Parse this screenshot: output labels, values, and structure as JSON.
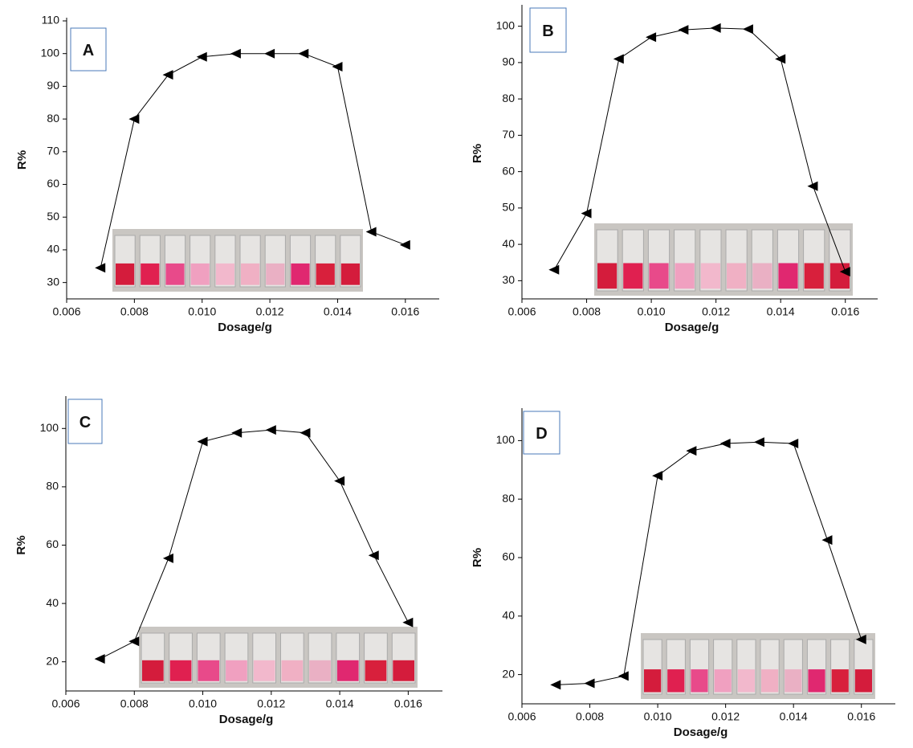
{
  "chart_data": [
    {
      "type": "line",
      "label": "A",
      "xlabel": "Dosage/g",
      "ylabel": "R%",
      "color": "#000000",
      "marker": "triangle-left",
      "x": [
        0.007,
        0.008,
        0.009,
        0.01,
        0.011,
        0.012,
        0.013,
        0.014,
        0.015,
        0.016
      ],
      "values": [
        34.5,
        80,
        93.5,
        99,
        100,
        100,
        100,
        96,
        45.5,
        41.5
      ],
      "xlim": [
        0.006,
        0.017
      ],
      "ylim": [
        25,
        110
      ],
      "xticks": [
        {
          "value": 0.006,
          "label": "0.006"
        },
        {
          "value": 0.008,
          "label": "0.008"
        },
        {
          "value": 0.01,
          "label": "0.010"
        },
        {
          "value": 0.012,
          "label": "0.012"
        },
        {
          "value": 0.014,
          "label": "0.014"
        },
        {
          "value": 0.016,
          "label": "0.016"
        }
      ],
      "yticks": [
        30,
        40,
        50,
        60,
        70,
        80,
        90,
        100,
        110
      ]
    },
    {
      "type": "line",
      "label": "B",
      "xlabel": "Dosage/g",
      "ylabel": "R%",
      "color": "#000000",
      "marker": "triangle-left",
      "x": [
        0.007,
        0.008,
        0.009,
        0.01,
        0.011,
        0.012,
        0.013,
        0.014,
        0.015,
        0.016
      ],
      "values": [
        33,
        48.5,
        91,
        97,
        99,
        99.5,
        99.2,
        91,
        56,
        32.5
      ],
      "xlim": [
        0.006,
        0.017
      ],
      "ylim": [
        25,
        105
      ],
      "xticks": [
        {
          "value": 0.006,
          "label": "0.006"
        },
        {
          "value": 0.008,
          "label": "0.008"
        },
        {
          "value": 0.01,
          "label": "0.010"
        },
        {
          "value": 0.012,
          "label": "0.012"
        },
        {
          "value": 0.014,
          "label": "0.014"
        },
        {
          "value": 0.016,
          "label": "0.016"
        }
      ],
      "yticks": [
        30,
        40,
        50,
        60,
        70,
        80,
        90,
        100
      ]
    },
    {
      "type": "line",
      "label": "C",
      "xlabel": "Dosage/g",
      "ylabel": "R%",
      "color": "#000000",
      "marker": "triangle-left",
      "x": [
        0.007,
        0.008,
        0.009,
        0.01,
        0.011,
        0.012,
        0.013,
        0.014,
        0.015,
        0.016
      ],
      "values": [
        21,
        27,
        55.5,
        95.5,
        98.5,
        99.5,
        98.5,
        82,
        56.5,
        33.5
      ],
      "xlim": [
        0.006,
        0.017
      ],
      "ylim": [
        10,
        110
      ],
      "xticks": [
        {
          "value": 0.006,
          "label": "0.006"
        },
        {
          "value": 0.008,
          "label": "0.008"
        },
        {
          "value": 0.01,
          "label": "0.010"
        },
        {
          "value": 0.012,
          "label": "0.012"
        },
        {
          "value": 0.014,
          "label": "0.014"
        },
        {
          "value": 0.016,
          "label": "0.016"
        }
      ],
      "yticks": [
        20,
        40,
        60,
        80,
        100
      ]
    },
    {
      "type": "line",
      "label": "D",
      "xlabel": "Dosage/g",
      "ylabel": "R%",
      "color": "#000000",
      "marker": "triangle-left",
      "x": [
        0.007,
        0.008,
        0.009,
        0.01,
        0.011,
        0.012,
        0.013,
        0.014,
        0.015,
        0.016
      ],
      "values": [
        16.5,
        17,
        19.5,
        88,
        96.5,
        99,
        99.5,
        99,
        66,
        32
      ],
      "xlim": [
        0.006,
        0.017
      ],
      "ylim": [
        10,
        110
      ],
      "xticks": [
        {
          "value": 0.006,
          "label": "0.006"
        },
        {
          "value": 0.008,
          "label": "0.008"
        },
        {
          "value": 0.01,
          "label": "0.010"
        },
        {
          "value": 0.012,
          "label": "0.012"
        },
        {
          "value": 0.014,
          "label": "0.014"
        },
        {
          "value": 0.016,
          "label": "0.016"
        }
      ],
      "yticks": [
        20,
        40,
        60,
        80,
        100
      ]
    }
  ]
}
